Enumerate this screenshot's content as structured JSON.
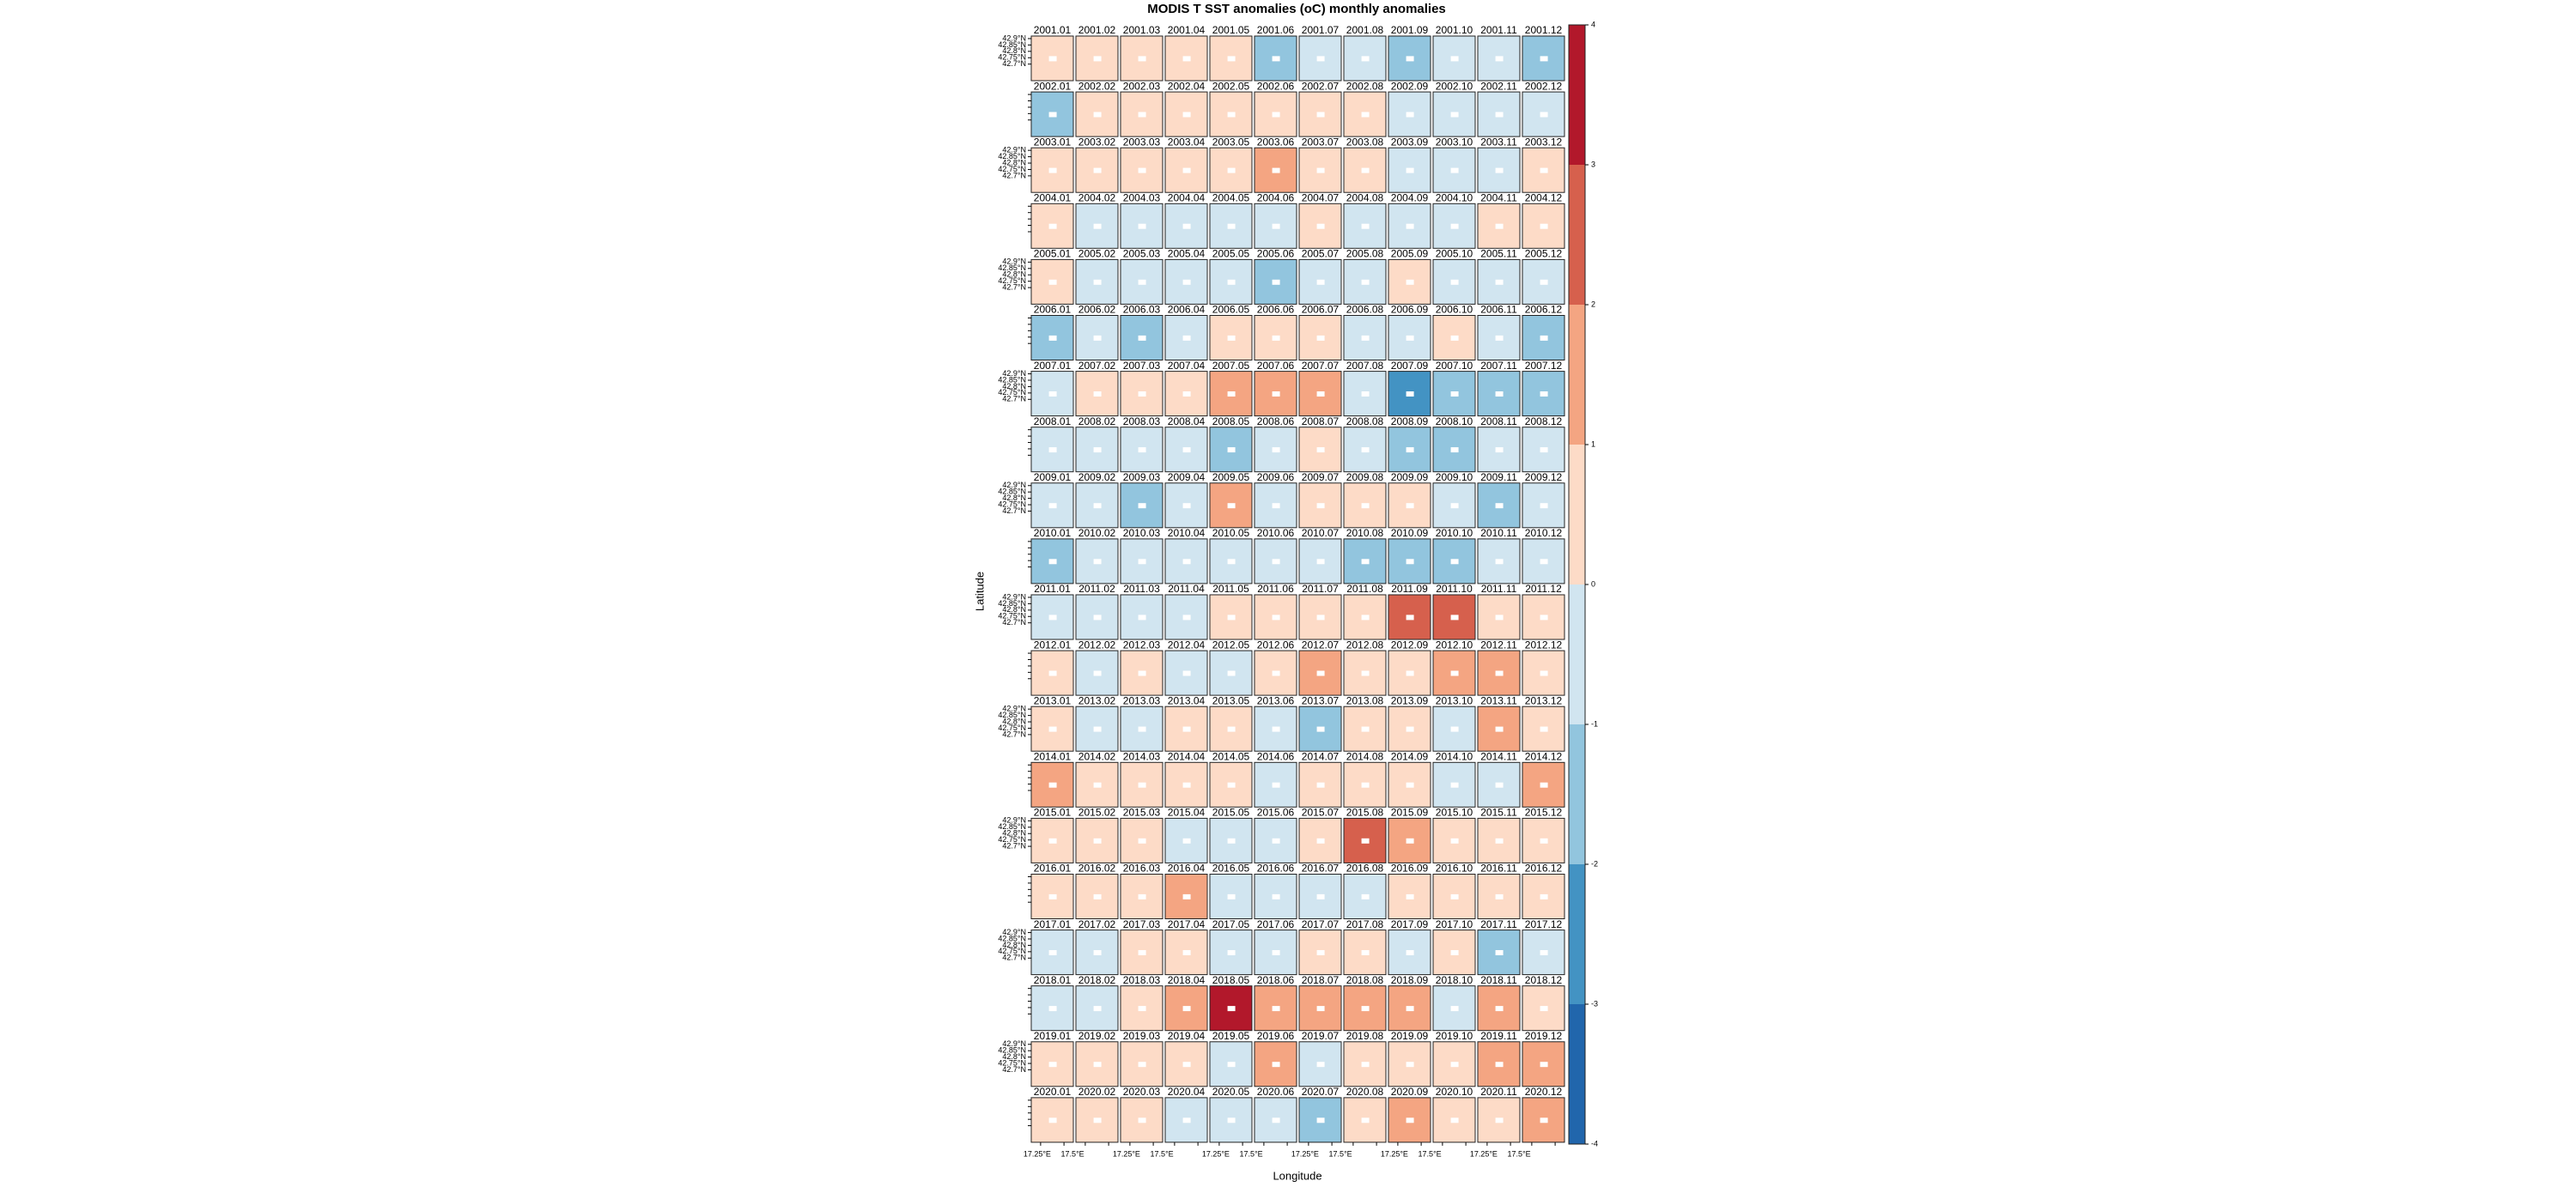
{
  "chart_data": {
    "type": "panel-grid",
    "title": "MODIS T SST anomalies (oC) monthly anomalies",
    "xlabel": "Longitude",
    "ylabel": "Latitude",
    "categories": [
      "2001.01",
      "2001.02",
      "2001.03",
      "2001.04",
      "2001.05",
      "2001.06",
      "2001.07",
      "2001.08",
      "2001.09",
      "2001.10",
      "2001.11",
      "2001.12",
      "2002.01",
      "2002.02",
      "2002.03",
      "2002.04",
      "2002.05",
      "2002.06",
      "2002.07",
      "2002.08",
      "2002.09",
      "2002.10",
      "2002.11",
      "2002.12",
      "2003.01",
      "2003.02",
      "2003.03",
      "2003.04",
      "2003.05",
      "2003.06",
      "2003.07",
      "2003.08",
      "2003.09",
      "2003.10",
      "2003.11",
      "2003.12",
      "2004.01",
      "2004.02",
      "2004.03",
      "2004.04",
      "2004.05",
      "2004.06",
      "2004.07",
      "2004.08",
      "2004.09",
      "2004.10",
      "2004.11",
      "2004.12",
      "2005.01",
      "2005.02",
      "2005.03",
      "2005.04",
      "2005.05",
      "2005.06",
      "2005.07",
      "2005.08",
      "2005.09",
      "2005.10",
      "2005.11",
      "2005.12",
      "2006.01",
      "2006.02",
      "2006.03",
      "2006.04",
      "2006.05",
      "2006.06",
      "2006.07",
      "2006.08",
      "2006.09",
      "2006.10",
      "2006.11",
      "2006.12",
      "2007.01",
      "2007.02",
      "2007.03",
      "2007.04",
      "2007.05",
      "2007.06",
      "2007.07",
      "2007.08",
      "2007.09",
      "2007.10",
      "2007.11",
      "2007.12",
      "2008.01",
      "2008.02",
      "2008.03",
      "2008.04",
      "2008.05",
      "2008.06",
      "2008.07",
      "2008.08",
      "2008.09",
      "2008.10",
      "2008.11",
      "2008.12",
      "2009.01",
      "2009.02",
      "2009.03",
      "2009.04",
      "2009.05",
      "2009.06",
      "2009.07",
      "2009.08",
      "2009.09",
      "2009.10",
      "2009.11",
      "2009.12",
      "2010.01",
      "2010.02",
      "2010.03",
      "2010.04",
      "2010.05",
      "2010.06",
      "2010.07",
      "2010.08",
      "2010.09",
      "2010.10",
      "2010.11",
      "2010.12",
      "2011.01",
      "2011.02",
      "2011.03",
      "2011.04",
      "2011.05",
      "2011.06",
      "2011.07",
      "2011.08",
      "2011.09",
      "2011.10",
      "2011.11",
      "2011.12",
      "2012.01",
      "2012.02",
      "2012.03",
      "2012.04",
      "2012.05",
      "2012.06",
      "2012.07",
      "2012.08",
      "2012.09",
      "2012.10",
      "2012.11",
      "2012.12",
      "2013.01",
      "2013.02",
      "2013.03",
      "2013.04",
      "2013.05",
      "2013.06",
      "2013.07",
      "2013.08",
      "2013.09",
      "2013.10",
      "2013.11",
      "2013.12",
      "2014.01",
      "2014.02",
      "2014.03",
      "2014.04",
      "2014.05",
      "2014.06",
      "2014.07",
      "2014.08",
      "2014.09",
      "2014.10",
      "2014.11",
      "2014.12",
      "2015.01",
      "2015.02",
      "2015.03",
      "2015.04",
      "2015.05",
      "2015.06",
      "2015.07",
      "2015.08",
      "2015.09",
      "2015.10",
      "2015.11",
      "2015.12",
      "2016.01",
      "2016.02",
      "2016.03",
      "2016.04",
      "2016.05",
      "2016.06",
      "2016.07",
      "2016.08",
      "2016.09",
      "2016.10",
      "2016.11",
      "2016.12",
      "2017.01",
      "2017.02",
      "2017.03",
      "2017.04",
      "2017.05",
      "2017.06",
      "2017.07",
      "2017.08",
      "2017.09",
      "2017.10",
      "2017.11",
      "2017.12",
      "2018.01",
      "2018.02",
      "2018.03",
      "2018.04",
      "2018.05",
      "2018.06",
      "2018.07",
      "2018.08",
      "2018.09",
      "2018.10",
      "2018.11",
      "2018.12",
      "2019.01",
      "2019.02",
      "2019.03",
      "2019.04",
      "2019.05",
      "2019.06",
      "2019.07",
      "2019.08",
      "2019.09",
      "2019.10",
      "2019.11",
      "2019.12",
      "2020.01",
      "2020.02",
      "2020.03",
      "2020.04",
      "2020.05",
      "2020.06",
      "2020.07",
      "2020.08",
      "2020.09",
      "2020.10",
      "2020.11",
      "2020.12"
    ],
    "values": [
      0.5,
      0.5,
      0.5,
      0.5,
      0.5,
      -1.5,
      -0.5,
      -0.5,
      -1.5,
      -0.5,
      -0.5,
      -1.5,
      -1.5,
      0.5,
      0.5,
      0.5,
      0.5,
      0.5,
      0.5,
      0.5,
      -0.5,
      -0.5,
      -0.5,
      -0.5,
      0.5,
      0.5,
      0.5,
      0.5,
      0.5,
      1.5,
      0.5,
      0.5,
      -0.5,
      -0.5,
      -0.5,
      0.5,
      0.5,
      -0.5,
      -0.5,
      -0.5,
      -0.5,
      -0.5,
      0.5,
      -0.5,
      -0.5,
      -0.5,
      0.5,
      0.5,
      0.5,
      -0.5,
      -0.5,
      -0.5,
      -0.5,
      -1.5,
      -0.5,
      -0.5,
      0.5,
      -0.5,
      -0.5,
      -0.5,
      -1.5,
      -0.5,
      -1.5,
      -0.5,
      0.5,
      0.5,
      0.5,
      -0.5,
      -0.5,
      0.5,
      -0.5,
      -1.5,
      -0.5,
      0.5,
      0.5,
      0.5,
      1.5,
      1.5,
      1.5,
      -0.5,
      -2.5,
      -1.5,
      -1.5,
      -1.5,
      -0.5,
      -0.5,
      -0.5,
      -0.5,
      -1.5,
      -0.5,
      0.5,
      -0.5,
      -1.5,
      -1.5,
      -0.5,
      -0.5,
      -0.5,
      -0.5,
      -1.5,
      -0.5,
      1.5,
      -0.5,
      0.5,
      0.5,
      0.5,
      -0.5,
      -1.5,
      -0.5,
      -1.5,
      -0.5,
      -0.5,
      -0.5,
      -0.5,
      -0.5,
      -0.5,
      -1.5,
      -1.5,
      -1.5,
      -0.5,
      -0.5,
      -0.5,
      -0.5,
      -0.5,
      -0.5,
      0.5,
      0.5,
      0.5,
      0.5,
      2.5,
      2.5,
      0.5,
      0.5,
      0.5,
      -0.5,
      0.5,
      -0.5,
      -0.5,
      0.5,
      1.5,
      0.5,
      0.5,
      1.5,
      1.5,
      0.5,
      0.5,
      -0.5,
      -0.5,
      0.5,
      0.5,
      -0.5,
      -1.5,
      0.5,
      0.5,
      -0.5,
      1.5,
      0.5,
      1.5,
      0.5,
      0.5,
      0.5,
      0.5,
      -0.5,
      0.5,
      0.5,
      0.5,
      -0.5,
      -0.5,
      1.5,
      0.5,
      0.5,
      0.5,
      -0.5,
      -0.5,
      -0.5,
      0.5,
      2.5,
      1.5,
      0.5,
      0.5,
      0.5,
      0.5,
      0.5,
      0.5,
      1.5,
      -0.5,
      -0.5,
      -0.5,
      -0.5,
      0.5,
      0.5,
      0.5,
      0.5,
      -0.5,
      -0.5,
      0.5,
      0.5,
      -0.5,
      -0.5,
      0.5,
      0.5,
      -0.5,
      0.5,
      -1.5,
      -0.5,
      -0.5,
      -0.5,
      0.5,
      1.5,
      3.5,
      1.5,
      1.5,
      1.5,
      1.5,
      -0.5,
      1.5,
      0.5,
      0.5,
      0.5,
      0.5,
      0.5,
      -0.5,
      1.5,
      -0.5,
      0.5,
      0.5,
      0.5,
      1.5,
      1.5,
      0.5,
      0.5,
      0.5,
      -0.5,
      -0.5,
      -0.5,
      -1.5,
      0.5,
      1.5,
      0.5,
      0.5,
      1.5
    ],
    "ylim": [
      42.57,
      42.92
    ],
    "yticks": [
      {
        "value": 42.9,
        "label": "42.9°N"
      },
      {
        "value": 42.85,
        "label": "42.85°N"
      },
      {
        "value": 42.8,
        "label": "42.8°N"
      },
      {
        "value": 42.75,
        "label": "42.75°N"
      },
      {
        "value": 42.7,
        "label": "42.7°N"
      }
    ],
    "xlim": [
      17.15,
      17.6
    ],
    "xticks": [
      {
        "value": 17.25,
        "label": "17.25°E"
      },
      {
        "value": 17.5,
        "label": "17.5°E"
      }
    ],
    "zlim": [
      -4,
      4
    ],
    "zticks": [
      -4,
      -3,
      -2,
      -1,
      0,
      1,
      2,
      3,
      4
    ],
    "colors": [
      "#2166ac",
      "#4393c3",
      "#92c5de",
      "#d1e5f0",
      "#fddbc7",
      "#f4a582",
      "#d6604d",
      "#b2182b"
    ]
  }
}
